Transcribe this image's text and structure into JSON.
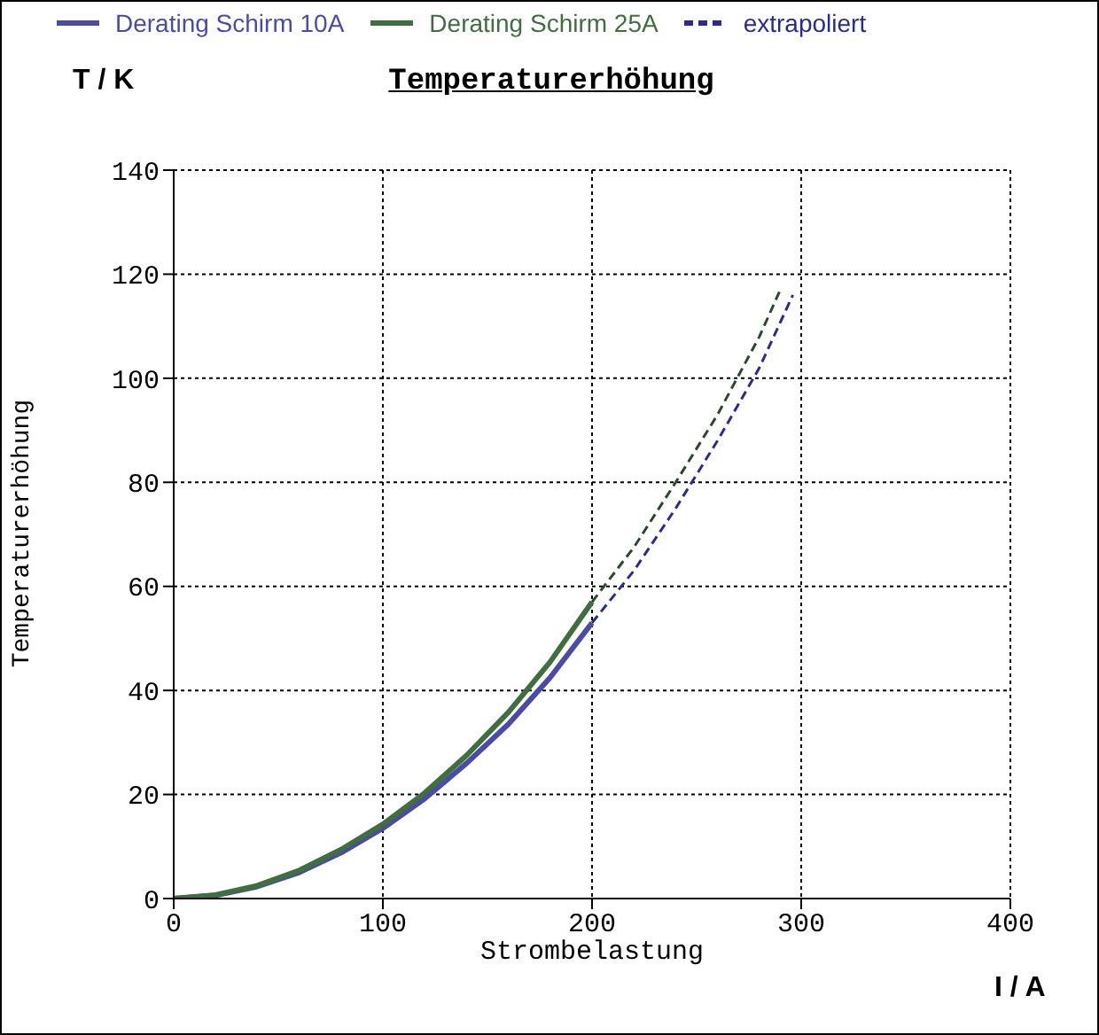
{
  "chart_data": {
    "type": "line",
    "title": "Temperaturerhöhung",
    "xlabel": "Strombelastung",
    "ylabel": "Temperaturerhöhung",
    "annotations": [
      "T / K",
      "I / A"
    ],
    "xlim": [
      0,
      400
    ],
    "xticks": [
      0,
      100,
      200,
      300,
      400
    ],
    "ylim": [
      0,
      140
    ],
    "yticks": [
      0,
      20,
      40,
      60,
      80,
      100,
      120,
      140
    ],
    "grid": true,
    "legend": "top",
    "marker": "none",
    "series": [
      {
        "name": "Derating Schirm 10A",
        "color": "#4a4aa8",
        "line_style": "solid",
        "x": [
          0,
          20,
          40,
          60,
          80,
          100,
          120,
          140,
          160,
          180,
          200
        ],
        "values": [
          0,
          0.6,
          2.3,
          5,
          8.8,
          13.5,
          19.2,
          26,
          33.5,
          42.5,
          53
        ]
      },
      {
        "name": "Derating Schirm 25A",
        "color": "#3f6e3f",
        "line_style": "solid",
        "x": [
          0,
          20,
          40,
          60,
          80,
          100,
          120,
          140,
          160,
          180,
          200
        ],
        "values": [
          0,
          0.7,
          2.5,
          5.4,
          9.4,
          14.3,
          20.3,
          27.5,
          35.8,
          45.5,
          57
        ]
      },
      {
        "name": "extrapoliert",
        "color": "#2a2a90",
        "line_style": "dashed",
        "x": [
          200,
          220,
          240,
          260,
          280,
          296
        ],
        "values": [
          53,
          63,
          75,
          88,
          102,
          116
        ]
      },
      {
        "color": "#2a4a2a",
        "line_style": "dashed",
        "x": [
          200,
          220,
          240,
          260,
          280,
          290
        ],
        "values": [
          57,
          67.5,
          80,
          93,
          108,
          117
        ]
      }
    ]
  }
}
